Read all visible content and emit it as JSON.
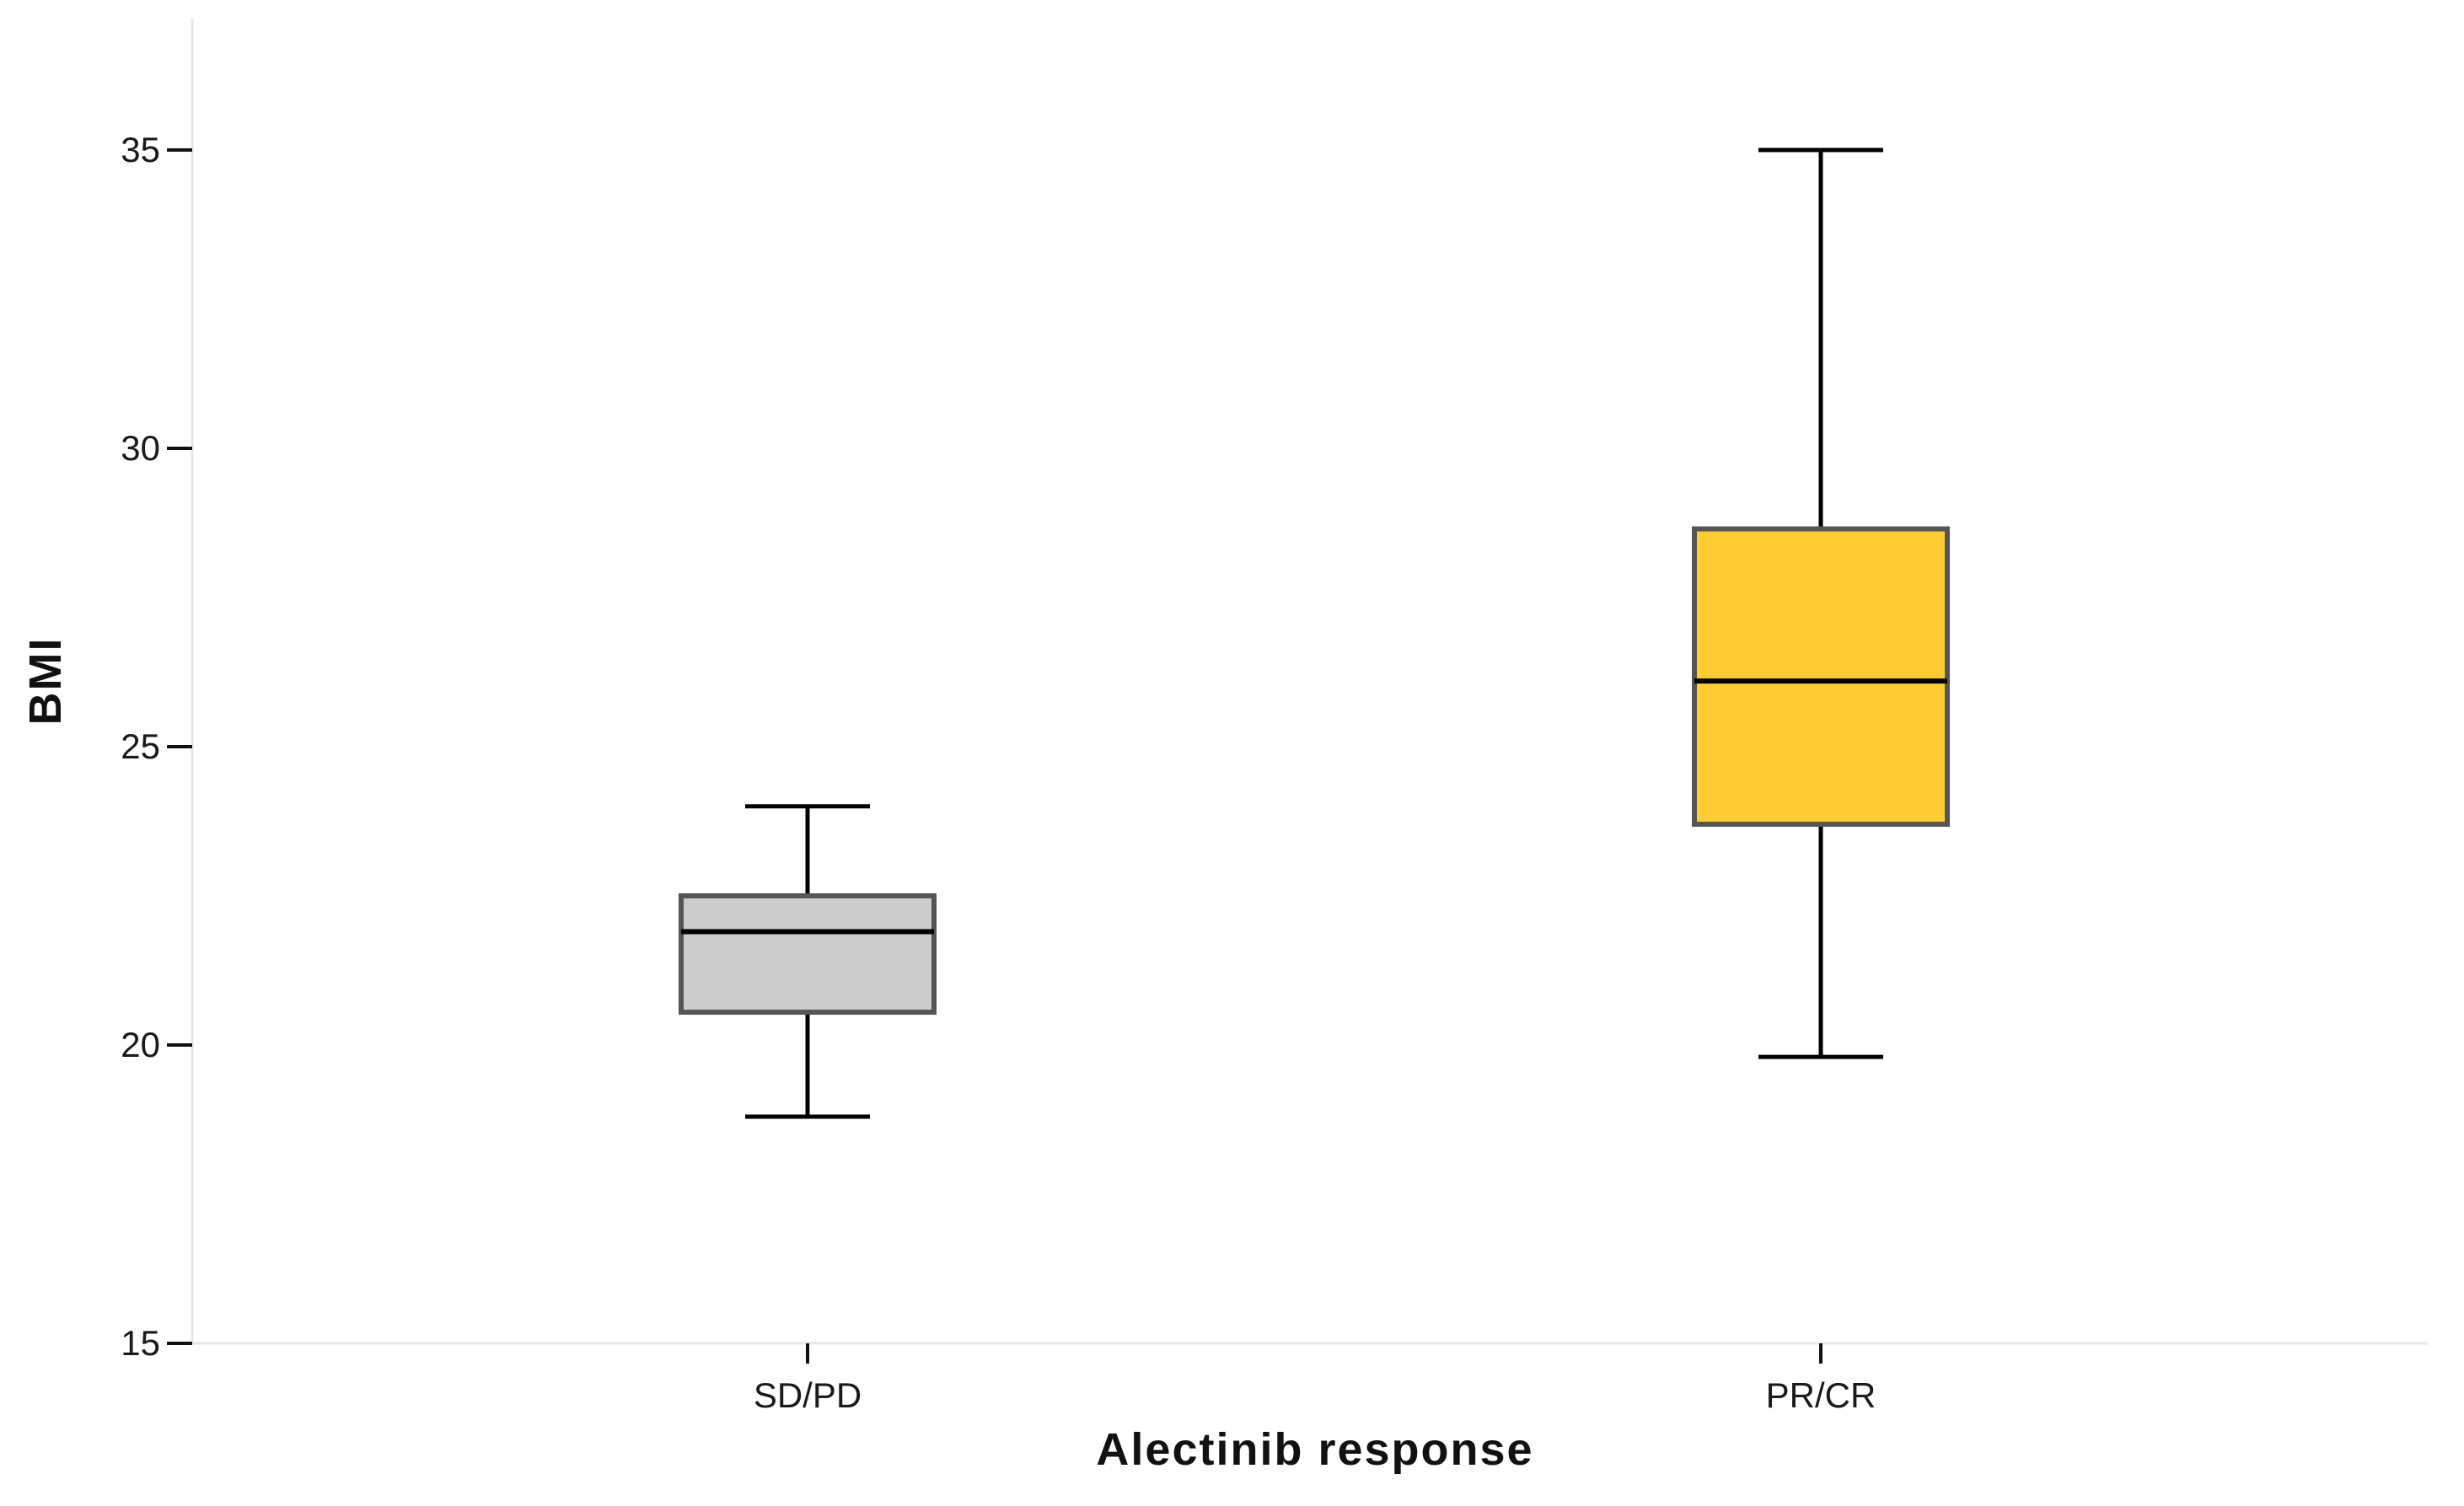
{
  "chart_data": {
    "type": "box",
    "title": "",
    "xlabel": "Alectinib response",
    "ylabel": "BMI",
    "ylim": [
      15,
      37
    ],
    "yticks": [
      15,
      20,
      25,
      30,
      35
    ],
    "grid": false,
    "categories": [
      "SD/PD",
      "PR/CR"
    ],
    "boxes": [
      {
        "category": "SD/PD",
        "whisker_low": 18.8,
        "q1": 20.55,
        "median": 21.9,
        "q3": 22.5,
        "whisker_high": 24.0,
        "color": "#cccccc"
      },
      {
        "category": "PR/CR",
        "whisker_low": 19.8,
        "q1": 23.7,
        "median": 26.1,
        "q3": 28.65,
        "whisker_high": 35.0,
        "color": "#ffcc33"
      }
    ]
  }
}
